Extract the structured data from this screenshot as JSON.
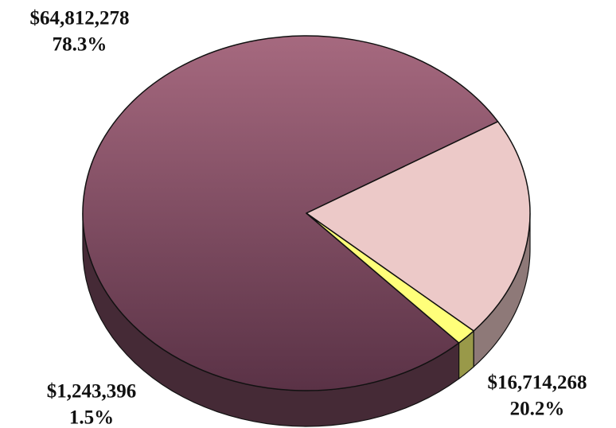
{
  "chart_data": {
    "type": "pie",
    "values": [
      64812278,
      16714268,
      1243396
    ],
    "value_labels": [
      "$64,812,278",
      "$16,714,268",
      "$1,243,396"
    ],
    "percent_values": [
      78.3,
      20.2,
      1.5
    ],
    "percent_labels": [
      "78.3%",
      "20.2%",
      "1.5%"
    ],
    "colors": [
      "#9a5e78",
      "#ecc9c8",
      "#ffff7a"
    ]
  }
}
